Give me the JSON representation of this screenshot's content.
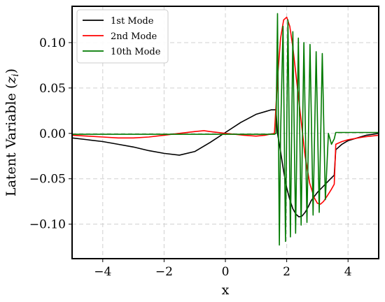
{
  "chart_data": {
    "type": "line",
    "xlabel": "x",
    "ylabel": "Latent Variable (z_i)",
    "ylabel_parts": {
      "main": "Latent Variable (",
      "var": "z",
      "sub": "i",
      "close": ")"
    },
    "xlim": [
      -5,
      5
    ],
    "ylim": [
      -0.138,
      0.14
    ],
    "xticks": [
      -4,
      -2,
      0,
      2,
      4
    ],
    "xtick_labels": [
      "−4",
      "−2",
      "0",
      "2",
      "4"
    ],
    "yticks": [
      -0.1,
      -0.05,
      0.0,
      0.05,
      0.1
    ],
    "ytick_labels": [
      "−0.10",
      "−0.05",
      "0.00",
      "0.05",
      "0.10"
    ],
    "grid": true,
    "legend_position": "top-left",
    "series": [
      {
        "name": "1st Mode",
        "color": "#000000",
        "x": [
          -5,
          -4.5,
          -4,
          -3.5,
          -3,
          -2.5,
          -2,
          -1.5,
          -1,
          -0.5,
          0,
          0.5,
          1,
          1.5,
          1.65,
          1.7,
          1.8,
          1.9,
          2.0,
          2.1,
          2.2,
          2.3,
          2.4,
          2.5,
          2.6,
          2.7,
          2.8,
          3.0,
          3.2,
          3.4,
          3.55,
          3.6,
          3.8,
          4.0,
          4.3,
          4.6,
          5.0
        ],
        "y": [
          -0.005,
          -0.007,
          -0.009,
          -0.012,
          -0.015,
          -0.019,
          -0.022,
          -0.024,
          -0.02,
          -0.01,
          0.001,
          0.012,
          0.021,
          0.026,
          0.026,
          0.0,
          -0.02,
          -0.042,
          -0.06,
          -0.073,
          -0.083,
          -0.089,
          -0.092,
          -0.091,
          -0.087,
          -0.081,
          -0.074,
          -0.065,
          -0.058,
          -0.051,
          -0.046,
          -0.018,
          -0.012,
          -0.008,
          -0.005,
          -0.002,
          0.0
        ]
      },
      {
        "name": "2nd Mode",
        "color": "#ff0000",
        "x": [
          -5,
          -4.5,
          -4,
          -3.5,
          -3,
          -2.5,
          -2,
          -1.5,
          -1,
          -0.7,
          -0.5,
          0,
          0.3,
          0.6,
          1,
          1.3,
          1.6,
          1.7,
          1.8,
          1.9,
          2.0,
          2.1,
          2.2,
          2.35,
          2.5,
          2.6,
          2.75,
          2.9,
          3.0,
          3.1,
          3.2,
          3.3,
          3.45,
          3.55,
          3.6,
          3.8,
          4.0,
          4.5,
          5.0
        ],
        "y": [
          -0.002,
          -0.003,
          -0.004,
          -0.005,
          -0.005,
          -0.004,
          -0.002,
          0.0,
          0.002,
          0.003,
          0.002,
          0.0,
          -0.001,
          -0.002,
          -0.003,
          -0.002,
          0.0,
          0.06,
          0.105,
          0.125,
          0.128,
          0.118,
          0.095,
          0.05,
          0.005,
          -0.025,
          -0.055,
          -0.071,
          -0.077,
          -0.078,
          -0.075,
          -0.07,
          -0.062,
          -0.056,
          -0.012,
          -0.009,
          -0.007,
          -0.004,
          -0.002
        ]
      },
      {
        "name": "10th Mode",
        "color": "#007a00",
        "x": [
          -5,
          -4,
          -3,
          -2,
          -1,
          0,
          1,
          1.5,
          1.6,
          1.65,
          1.7,
          1.76,
          1.8,
          1.88,
          1.96,
          2.04,
          2.12,
          2.2,
          2.29,
          2.38,
          2.47,
          2.56,
          2.66,
          2.76,
          2.86,
          2.96,
          3.06,
          3.16,
          3.26,
          3.36,
          3.46,
          3.55,
          3.6,
          3.8,
          4.0,
          4.5,
          5.0
        ],
        "y": [
          -0.001,
          -0.001,
          -0.001,
          -0.001,
          -0.001,
          -0.001,
          -0.001,
          -0.001,
          -0.001,
          0.0,
          0.132,
          -0.123,
          0.0,
          0.118,
          -0.119,
          0.125,
          -0.114,
          0.112,
          -0.11,
          0.105,
          -0.101,
          0.1,
          -0.098,
          0.098,
          -0.09,
          0.09,
          -0.087,
          0.088,
          -0.073,
          0.0,
          -0.012,
          -0.006,
          0.001,
          0.001,
          0.001,
          0.001,
          0.001
        ]
      }
    ]
  }
}
